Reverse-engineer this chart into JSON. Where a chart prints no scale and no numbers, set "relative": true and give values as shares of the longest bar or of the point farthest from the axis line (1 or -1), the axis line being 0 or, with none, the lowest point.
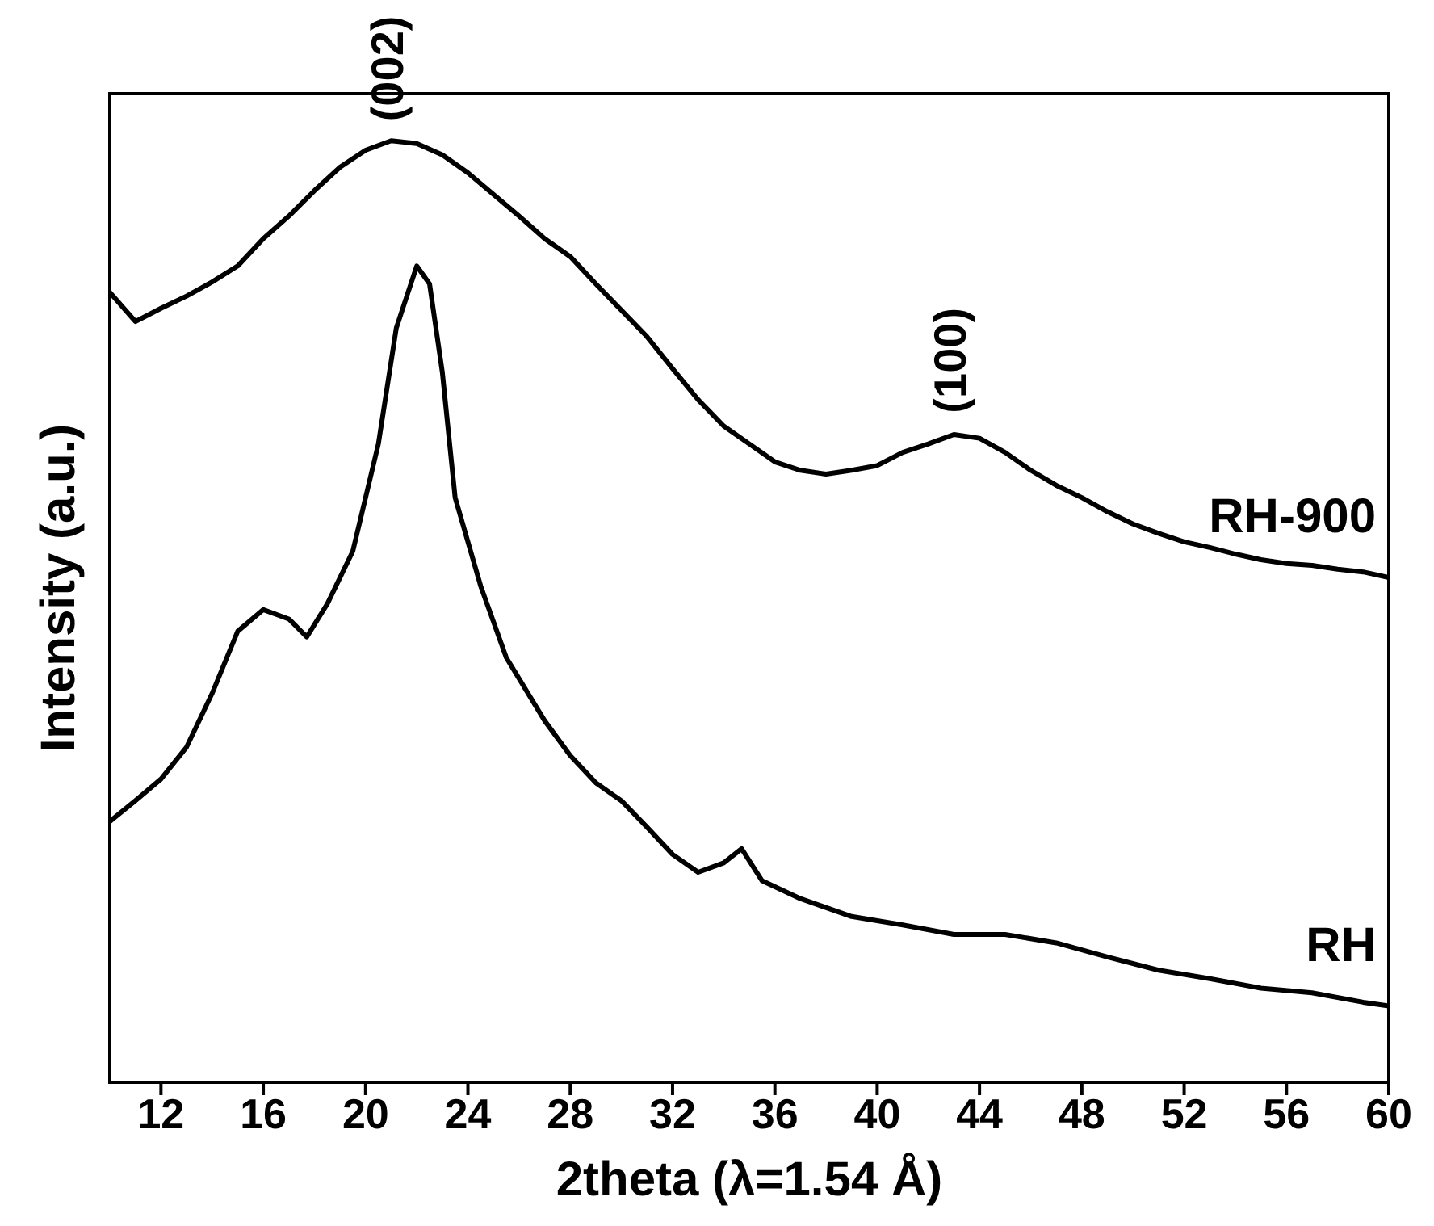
{
  "chart_data": {
    "type": "line",
    "relative": true,
    "xlabel": "2theta (λ=1.54 Å)",
    "ylabel": "Intensity (a.u.)",
    "xlim": [
      10,
      60
    ],
    "xticks": [
      12,
      16,
      20,
      24,
      28,
      32,
      36,
      40,
      44,
      48,
      52,
      56,
      60
    ],
    "marker": "none",
    "line_style": "solid",
    "annotations": [
      {
        "text": "(002)",
        "x": 21,
        "y": 1
      },
      {
        "text": "(100)",
        "x": 43,
        "y": 0.69
      }
    ],
    "series": [
      {
        "name": "RH-900",
        "color": "#000000",
        "x": [
          10,
          11,
          12,
          13,
          14,
          15,
          16,
          17,
          18,
          19,
          20,
          21,
          22,
          23,
          24,
          25,
          26,
          27,
          28,
          29,
          30,
          31,
          32,
          33,
          34,
          35,
          36,
          37,
          38,
          39,
          40,
          41,
          42,
          43,
          44,
          45,
          46,
          47,
          48,
          49,
          50,
          51,
          52,
          53,
          54,
          55,
          56,
          57,
          58,
          59,
          60
        ],
        "values": [
          0.839,
          0.808,
          0.822,
          0.835,
          0.85,
          0.867,
          0.896,
          0.92,
          0.947,
          0.972,
          0.99,
          1,
          0.997,
          0.985,
          0.966,
          0.943,
          0.92,
          0.896,
          0.877,
          0.848,
          0.82,
          0.792,
          0.758,
          0.725,
          0.697,
          0.678,
          0.659,
          0.65,
          0.646,
          0.65,
          0.655,
          0.669,
          0.678,
          0.688,
          0.684,
          0.669,
          0.65,
          0.634,
          0.621,
          0.606,
          0.593,
          0.583,
          0.574,
          0.568,
          0.561,
          0.555,
          0.551,
          0.549,
          0.545,
          0.542,
          0.536
        ]
      },
      {
        "name": "RH",
        "color": "#000000",
        "x": [
          10,
          11,
          12,
          13,
          14,
          15,
          16,
          17,
          17.7,
          18.5,
          19.5,
          20.5,
          21.2,
          22,
          22.5,
          23,
          23.5,
          24.5,
          25.5,
          27,
          28,
          29,
          30,
          31,
          32,
          33,
          34,
          34.7,
          35.5,
          37,
          39,
          41,
          43,
          45,
          47,
          49,
          51,
          53,
          55,
          57,
          59,
          60
        ],
        "values": [
          0.277,
          0.299,
          0.322,
          0.356,
          0.413,
          0.479,
          0.502,
          0.492,
          0.473,
          0.508,
          0.564,
          0.678,
          0.801,
          0.867,
          0.848,
          0.754,
          0.621,
          0.527,
          0.451,
          0.384,
          0.347,
          0.318,
          0.299,
          0.271,
          0.242,
          0.223,
          0.233,
          0.248,
          0.214,
          0.195,
          0.176,
          0.167,
          0.157,
          0.157,
          0.148,
          0.133,
          0.119,
          0.11,
          0.1,
          0.095,
          0.085,
          0.081
        ]
      }
    ]
  }
}
